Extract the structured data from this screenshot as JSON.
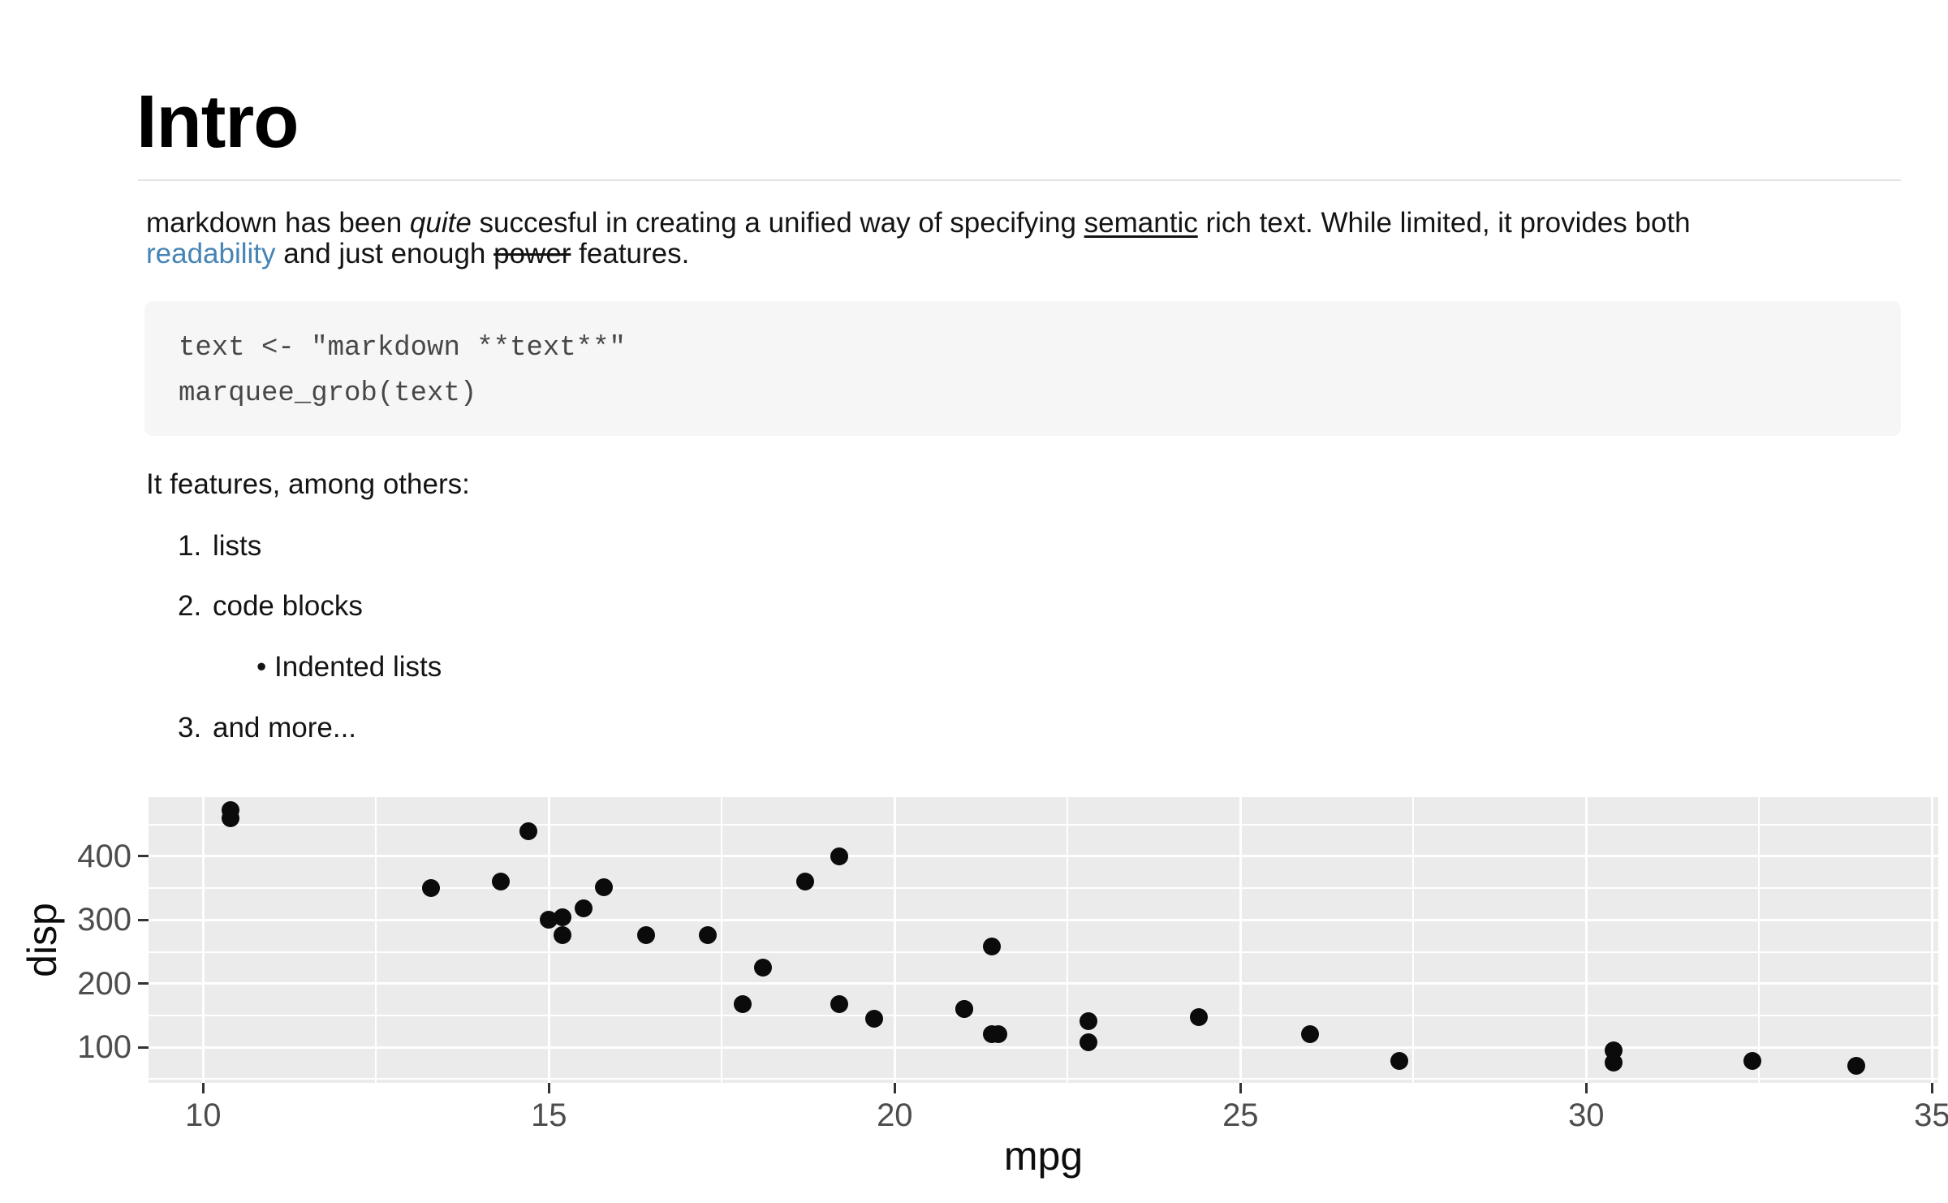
{
  "page": {
    "title": "Intro"
  },
  "paragraph": {
    "segments": [
      {
        "text": "markdown has been "
      },
      {
        "text": "quite",
        "style": "em"
      },
      {
        "text": " succesful in creating a unified way of specifying "
      },
      {
        "text": "semantic",
        "style": "u"
      },
      {
        "text": " rich text. While limited, it provides both"
      },
      {
        "style": "br"
      },
      {
        "text": "readability",
        "style": "link"
      },
      {
        "text": " and just enough "
      },
      {
        "text": "power",
        "style": "s"
      },
      {
        "text": " features."
      }
    ],
    "link_color": "#4584b6"
  },
  "code_block": {
    "lines": [
      "text <- \"markdown **text**\"",
      "marquee_grob(text)"
    ],
    "background": "#f6f6f6",
    "text_color": "#474747"
  },
  "list": {
    "intro": "It features, among others:",
    "items": [
      {
        "marker": "1.",
        "label": "lists",
        "indent": false
      },
      {
        "marker": "2.",
        "label": "code blocks",
        "indent": false
      },
      {
        "marker": "•",
        "label": "Indented lists",
        "indent": true
      },
      {
        "marker": "3.",
        "label": "and more...",
        "indent": false
      }
    ]
  },
  "chart_data": {
    "type": "scatter",
    "title": "",
    "xlabel": "mpg",
    "ylabel": "disp",
    "xlim": [
      9.21,
      35.09
    ],
    "ylim": [
      44,
      493
    ],
    "x_ticks": [
      10,
      15,
      20,
      25,
      30,
      35
    ],
    "y_ticks": [
      100,
      200,
      300,
      400
    ],
    "x_minor_ticks": [
      12.5,
      17.5,
      22.5,
      27.5,
      32.5
    ],
    "y_minor_ticks": [
      50,
      150,
      250,
      350,
      450
    ],
    "grid": true,
    "legend": "none",
    "panel_color": "#EBEBEB",
    "grid_color": "#FFFFFF",
    "tick_mark_color": "#333333",
    "tick_label_color": "#4d4d4d",
    "point_color": "#0b0b0b",
    "points": [
      [
        21.0,
        160.0
      ],
      [
        21.0,
        160.0
      ],
      [
        22.8,
        108.0
      ],
      [
        21.4,
        258.0
      ],
      [
        18.7,
        360.0
      ],
      [
        18.1,
        225.0
      ],
      [
        14.3,
        360.0
      ],
      [
        24.4,
        146.7
      ],
      [
        22.8,
        140.8
      ],
      [
        19.2,
        167.6
      ],
      [
        17.8,
        167.6
      ],
      [
        16.4,
        275.8
      ],
      [
        17.3,
        275.8
      ],
      [
        15.2,
        275.8
      ],
      [
        10.4,
        472.0
      ],
      [
        10.4,
        460.0
      ],
      [
        14.7,
        440.0
      ],
      [
        32.4,
        78.7
      ],
      [
        30.4,
        75.7
      ],
      [
        33.9,
        71.1
      ],
      [
        21.5,
        120.1
      ],
      [
        15.5,
        318.0
      ],
      [
        15.2,
        304.0
      ],
      [
        13.3,
        350.0
      ],
      [
        19.2,
        400.0
      ],
      [
        27.3,
        79.0
      ],
      [
        26.0,
        120.3
      ],
      [
        30.4,
        95.1
      ],
      [
        15.8,
        351.0
      ],
      [
        19.7,
        145.0
      ],
      [
        15.0,
        301.0
      ],
      [
        21.4,
        121.0
      ]
    ]
  }
}
